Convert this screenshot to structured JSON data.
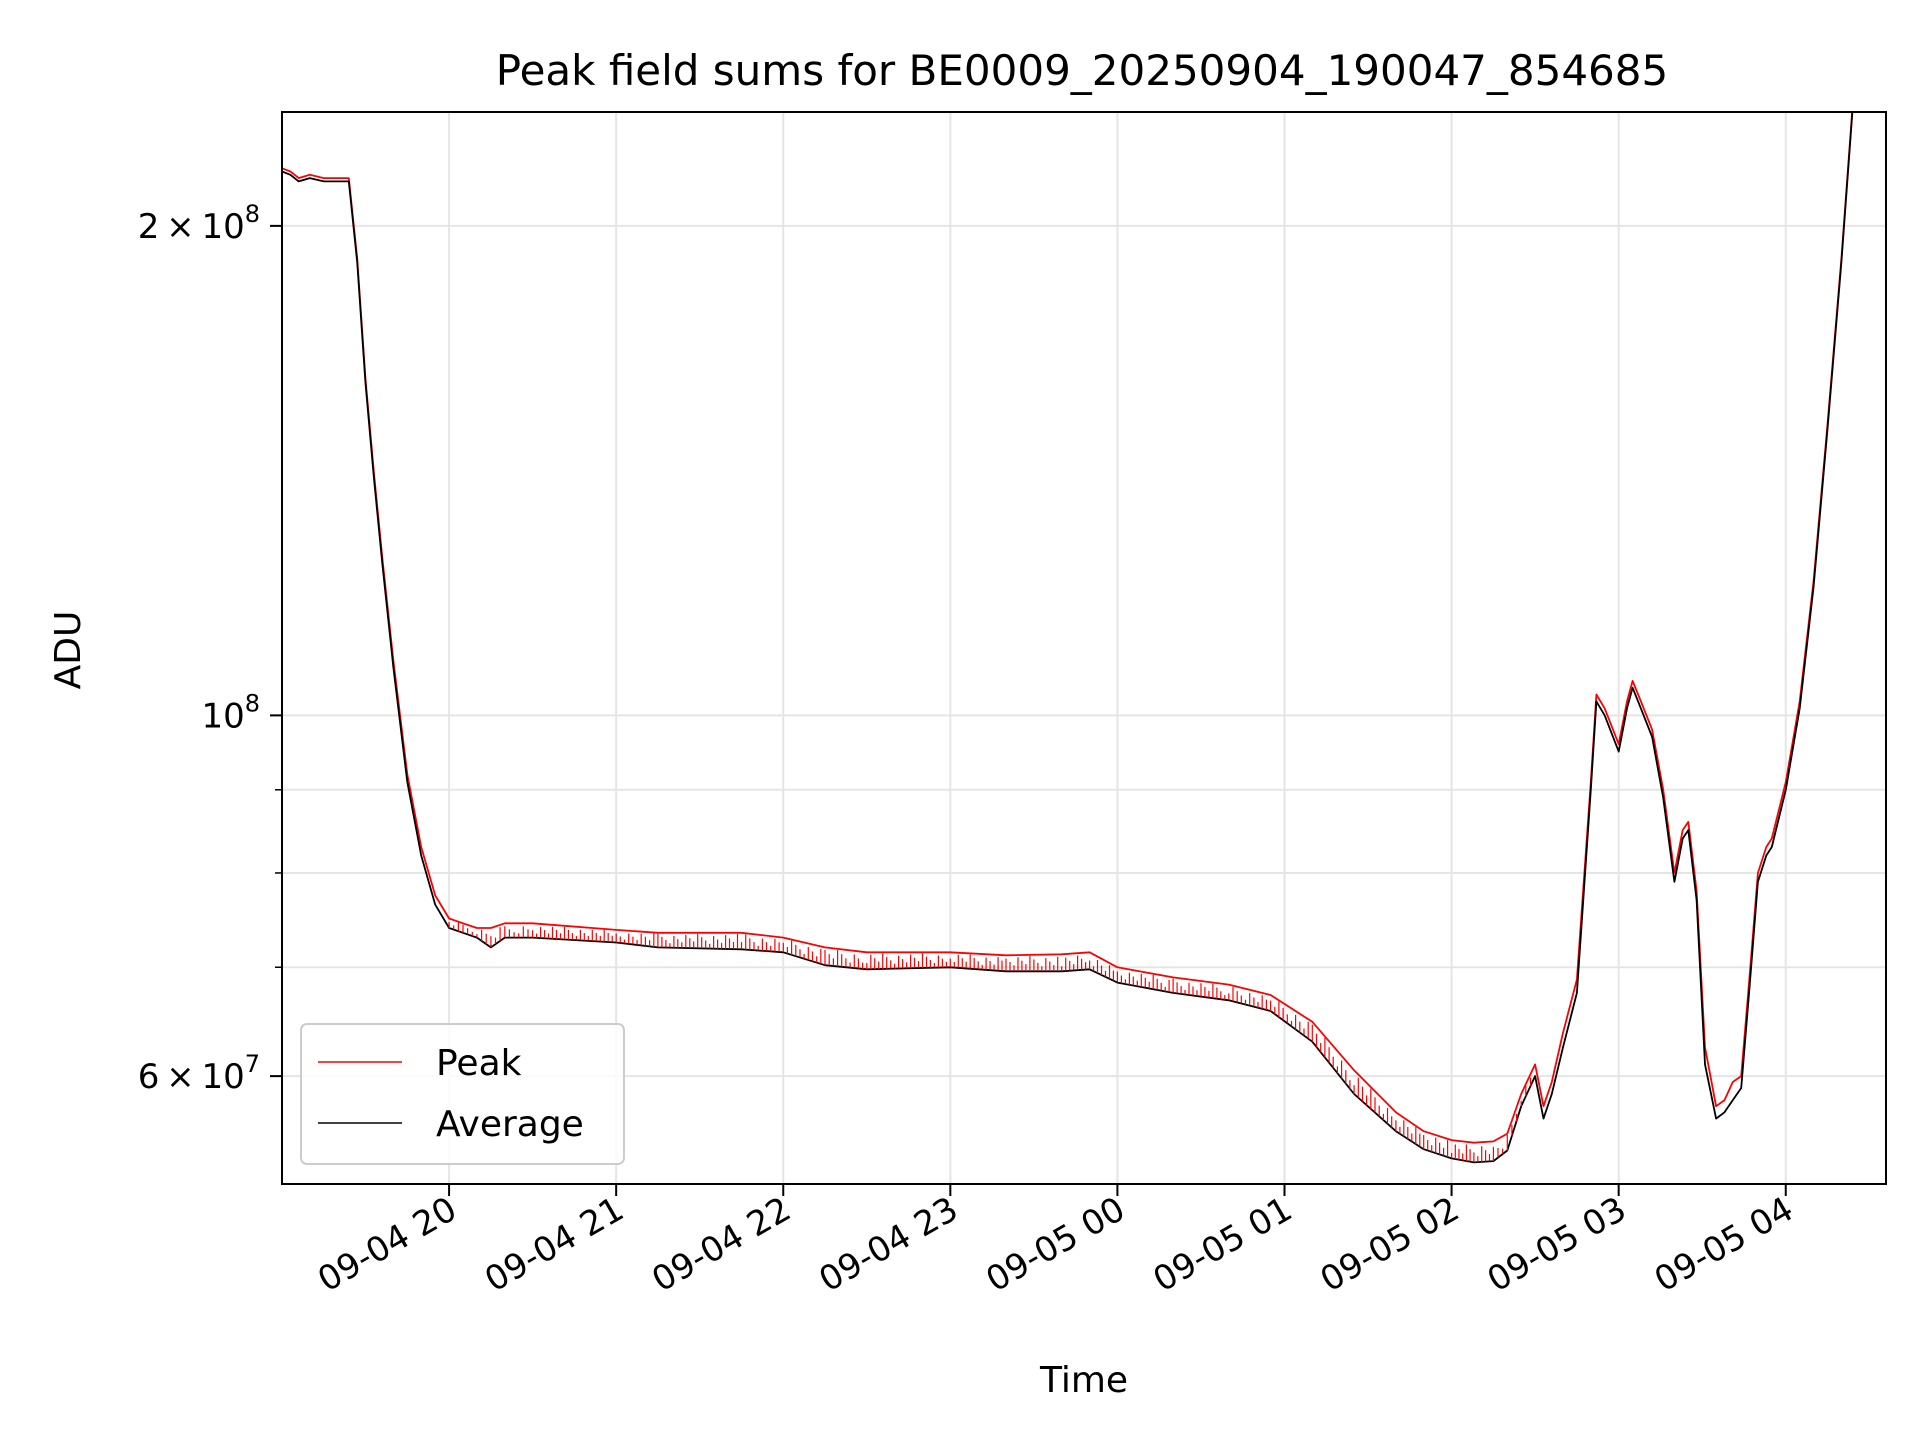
{
  "chart_data": {
    "type": "line",
    "title": "Peak field sums for BE0009_20250904_190047_854685",
    "xlabel": "Time",
    "ylabel": "ADU",
    "yscale": "log",
    "ylim": [
      51500000,
      235000000
    ],
    "xlim": [
      "2025-09-04 19:00",
      "2025-09-05 04:36"
    ],
    "grid": true,
    "legend_position": "lower-left",
    "x_ticks": [
      {
        "t": "2025-09-04 20:00",
        "label": "09-04 20"
      },
      {
        "t": "2025-09-04 21:00",
        "label": "09-04 21"
      },
      {
        "t": "2025-09-04 22:00",
        "label": "09-04 22"
      },
      {
        "t": "2025-09-04 23:00",
        "label": "09-04 23"
      },
      {
        "t": "2025-09-05 00:00",
        "label": "09-05 00"
      },
      {
        "t": "2025-09-05 01:00",
        "label": "09-05 01"
      },
      {
        "t": "2025-09-05 02:00",
        "label": "09-05 02"
      },
      {
        "t": "2025-09-05 03:00",
        "label": "09-05 03"
      },
      {
        "t": "2025-09-05 04:00",
        "label": "09-05 04"
      }
    ],
    "y_ticks_major": [
      {
        "value": 60000000,
        "mantissa": "6",
        "exponent": "7"
      },
      {
        "value": 100000000,
        "mantissa": "",
        "exponent": "8"
      },
      {
        "value": 200000000,
        "mantissa": "2",
        "exponent": "8"
      }
    ],
    "y_ticks_minor": [
      70000000,
      80000000,
      90000000
    ],
    "series": [
      {
        "name": "Average",
        "color": "#000000",
        "x": [
          "2025-09-04 19:00",
          "2025-09-04 19:03",
          "2025-09-04 19:06",
          "2025-09-04 19:10",
          "2025-09-04 19:15",
          "2025-09-04 19:20",
          "2025-09-04 19:24",
          "2025-09-04 19:27",
          "2025-09-04 19:30",
          "2025-09-04 19:33",
          "2025-09-04 19:36",
          "2025-09-04 19:40",
          "2025-09-04 19:45",
          "2025-09-04 19:50",
          "2025-09-04 19:55",
          "2025-09-04 20:00",
          "2025-09-04 20:05",
          "2025-09-04 20:10",
          "2025-09-04 20:15",
          "2025-09-04 20:20",
          "2025-09-04 20:25",
          "2025-09-04 20:30",
          "2025-09-04 21:00",
          "2025-09-04 21:15",
          "2025-09-04 21:45",
          "2025-09-04 22:00",
          "2025-09-04 22:15",
          "2025-09-04 22:30",
          "2025-09-04 23:00",
          "2025-09-04 23:20",
          "2025-09-04 23:40",
          "2025-09-04 23:50",
          "2025-09-05 00:00",
          "2025-09-05 00:20",
          "2025-09-05 00:40",
          "2025-09-05 00:55",
          "2025-09-05 01:10",
          "2025-09-05 01:25",
          "2025-09-05 01:40",
          "2025-09-05 01:50",
          "2025-09-05 02:00",
          "2025-09-05 02:08",
          "2025-09-05 02:15",
          "2025-09-05 02:20",
          "2025-09-05 02:25",
          "2025-09-05 02:30",
          "2025-09-05 02:33",
          "2025-09-05 02:36",
          "2025-09-05 02:40",
          "2025-09-05 02:45",
          "2025-09-05 02:50",
          "2025-09-05 02:52",
          "2025-09-05 02:55",
          "2025-09-05 03:00",
          "2025-09-05 03:03",
          "2025-09-05 03:05",
          "2025-09-05 03:08",
          "2025-09-05 03:12",
          "2025-09-05 03:16",
          "2025-09-05 03:20",
          "2025-09-05 03:23",
          "2025-09-05 03:25",
          "2025-09-05 03:28",
          "2025-09-05 03:31",
          "2025-09-05 03:35",
          "2025-09-05 03:38",
          "2025-09-05 03:41",
          "2025-09-05 03:44",
          "2025-09-05 03:47",
          "2025-09-05 03:50",
          "2025-09-05 03:53",
          "2025-09-05 03:55",
          "2025-09-05 04:00",
          "2025-09-05 04:05",
          "2025-09-05 04:10",
          "2025-09-05 04:15",
          "2025-09-05 04:20",
          "2025-09-05 04:24"
        ],
        "y": [
          216000000,
          215000000,
          213000000,
          214000000,
          213000000,
          213000000,
          213000000,
          190000000,
          160000000,
          140000000,
          124000000,
          107000000,
          91000000,
          82000000,
          76500000,
          74000000,
          73500000,
          73000000,
          72000000,
          73000000,
          73000000,
          73000000,
          72500000,
          72000000,
          71800000,
          71500000,
          70200000,
          69800000,
          70000000,
          69600000,
          69600000,
          69800000,
          68500000,
          67500000,
          66800000,
          65800000,
          63000000,
          58500000,
          55500000,
          54100000,
          53400000,
          53100000,
          53200000,
          54000000,
          57500000,
          60000000,
          56500000,
          58500000,
          62500000,
          67500000,
          90000000,
          102000000,
          100000000,
          95000000,
          101000000,
          104000000,
          101000000,
          97000000,
          89000000,
          79000000,
          84000000,
          85000000,
          77000000,
          61000000,
          56500000,
          57000000,
          58000000,
          59000000,
          68000000,
          79000000,
          82000000,
          83000000,
          90000000,
          101000000,
          120000000,
          150000000,
          190000000,
          236000000
        ]
      },
      {
        "name": "Peak",
        "color": "#ff0000",
        "x": [
          "2025-09-04 19:00",
          "2025-09-04 19:03",
          "2025-09-04 19:06",
          "2025-09-04 19:10",
          "2025-09-04 19:15",
          "2025-09-04 19:20",
          "2025-09-04 19:24",
          "2025-09-04 19:27",
          "2025-09-04 19:30",
          "2025-09-04 19:33",
          "2025-09-04 19:36",
          "2025-09-04 19:40",
          "2025-09-04 19:45",
          "2025-09-04 19:50",
          "2025-09-04 19:55",
          "2025-09-04 20:00",
          "2025-09-04 20:05",
          "2025-09-04 20:10",
          "2025-09-04 20:15",
          "2025-09-04 20:20",
          "2025-09-04 20:25",
          "2025-09-04 20:30",
          "2025-09-04 21:00",
          "2025-09-04 21:15",
          "2025-09-04 21:45",
          "2025-09-04 22:00",
          "2025-09-04 22:15",
          "2025-09-04 22:30",
          "2025-09-04 23:00",
          "2025-09-04 23:20",
          "2025-09-04 23:40",
          "2025-09-04 23:50",
          "2025-09-05 00:00",
          "2025-09-05 00:20",
          "2025-09-05 00:40",
          "2025-09-05 00:55",
          "2025-09-05 01:10",
          "2025-09-05 01:25",
          "2025-09-05 01:40",
          "2025-09-05 01:50",
          "2025-09-05 02:00",
          "2025-09-05 02:08",
          "2025-09-05 02:15",
          "2025-09-05 02:20",
          "2025-09-05 02:25",
          "2025-09-05 02:30",
          "2025-09-05 02:33",
          "2025-09-05 02:36",
          "2025-09-05 02:40",
          "2025-09-05 02:45",
          "2025-09-05 02:50",
          "2025-09-05 02:52",
          "2025-09-05 02:55",
          "2025-09-05 03:00",
          "2025-09-05 03:03",
          "2025-09-05 03:05",
          "2025-09-05 03:08",
          "2025-09-05 03:12",
          "2025-09-05 03:16",
          "2025-09-05 03:20",
          "2025-09-05 03:23",
          "2025-09-05 03:25",
          "2025-09-05 03:28",
          "2025-09-05 03:31",
          "2025-09-05 03:35",
          "2025-09-05 03:38",
          "2025-09-05 03:41",
          "2025-09-05 03:44",
          "2025-09-05 03:47",
          "2025-09-05 03:50",
          "2025-09-05 03:53",
          "2025-09-05 03:55",
          "2025-09-05 04:00",
          "2025-09-05 04:05",
          "2025-09-05 04:10",
          "2025-09-05 04:15",
          "2025-09-05 04:20",
          "2025-09-05 04:24"
        ],
        "y": [
          217000000,
          216000000,
          214000000,
          215000000,
          214000000,
          214000000,
          214000000,
          191000000,
          161000000,
          141000000,
          125000000,
          108000000,
          92000000,
          83000000,
          77500000,
          75000000,
          74500000,
          74000000,
          74000000,
          74500000,
          74500000,
          74500000,
          73800000,
          73500000,
          73500000,
          73000000,
          72000000,
          71500000,
          71500000,
          71200000,
          71300000,
          71500000,
          70000000,
          69000000,
          68300000,
          67300000,
          64800000,
          60500000,
          57000000,
          55500000,
          54800000,
          54600000,
          54700000,
          55300000,
          58500000,
          61000000,
          57500000,
          59500000,
          63800000,
          68800000,
          91000000,
          103000000,
          101000000,
          96000000,
          102000000,
          105000000,
          102000000,
          98000000,
          90000000,
          80000000,
          85000000,
          86000000,
          78000000,
          62500000,
          57500000,
          58000000,
          59500000,
          60000000,
          69000000,
          80000000,
          83000000,
          84000000,
          91000000,
          102000000,
          121000000,
          151000000,
          191000000,
          237000000
        ]
      }
    ]
  }
}
